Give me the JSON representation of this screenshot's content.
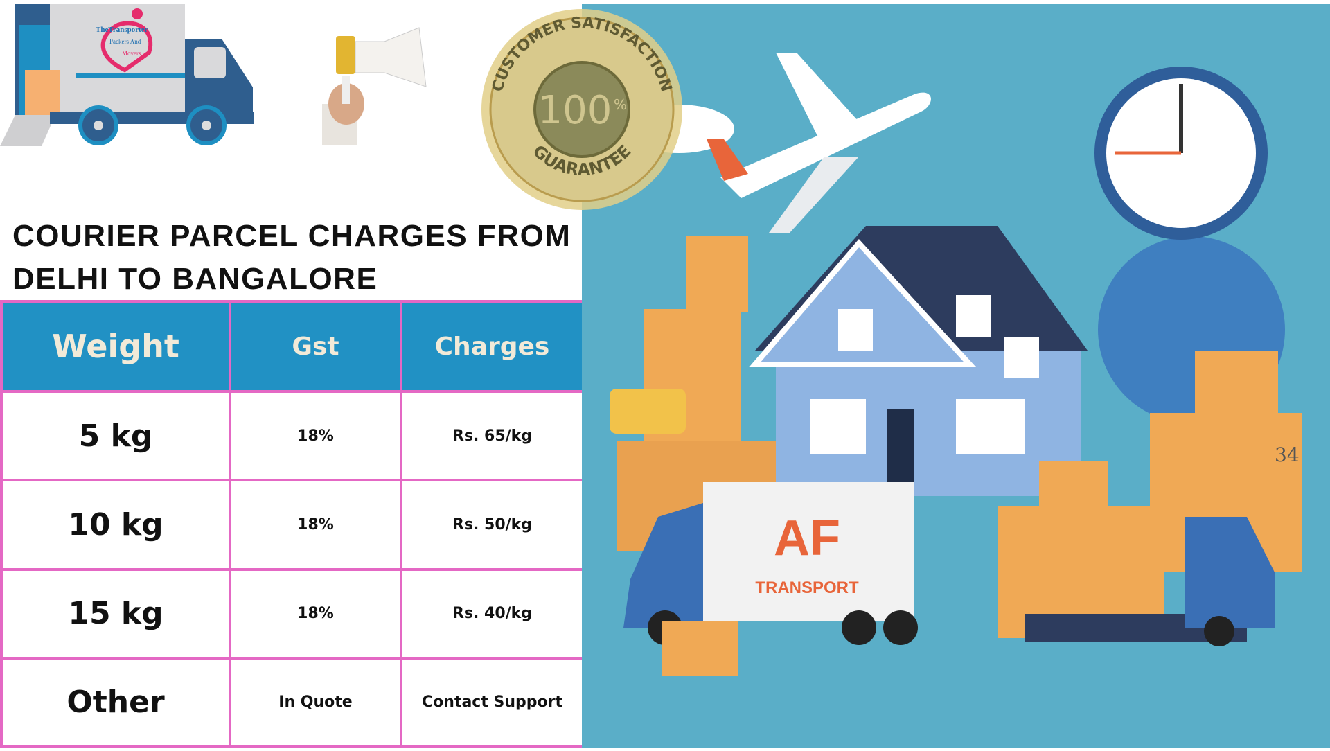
{
  "logo": {
    "line1": "TheTransporter",
    "line2": "Packers And",
    "line3": "Movers"
  },
  "seal": {
    "top_text": "CUSTOMER SATISFACTION",
    "number": "100",
    "percent": "%",
    "bottom_text": "GUARANTEE"
  },
  "title": "COURIER PARCEL CHARGES FROM DELHI TO BANGALORE",
  "table": {
    "headers": [
      "Weight",
      "Gst",
      "Charges"
    ],
    "rows": [
      [
        "5 kg",
        "18%",
        "Rs. 65/kg"
      ],
      [
        "10 kg",
        "18%",
        "Rs. 50/kg"
      ],
      [
        "15 kg",
        "18%",
        "Rs. 40/kg"
      ],
      [
        "Other",
        "In Quote",
        "Contact Support"
      ]
    ]
  },
  "illustration": {
    "truck_brand": "AF",
    "truck_brand_sub": "TRANSPORT",
    "box_number": "34"
  },
  "colors": {
    "header_bg": "#2191c4",
    "border": "#e468c4",
    "illustration_bg": "#5aaec8"
  }
}
